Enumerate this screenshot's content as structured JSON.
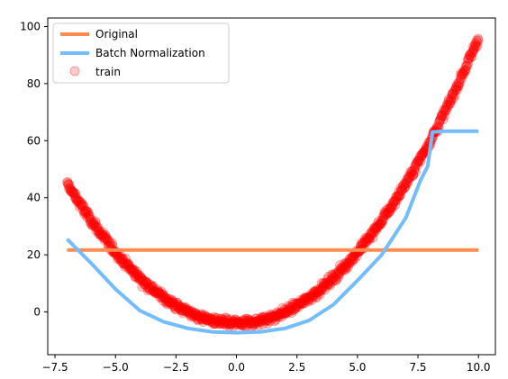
{
  "chart_data": {
    "type": "line",
    "title": "",
    "xlabel": "",
    "ylabel": "",
    "xlim": [
      -7.8,
      10.7
    ],
    "ylim": [
      -15,
      103
    ],
    "xticks": [
      -7.5,
      -5.0,
      -2.5,
      0.0,
      2.5,
      5.0,
      7.5,
      10.0
    ],
    "xtick_labels": [
      "−7.5",
      "−5.0",
      "−2.5",
      "0.0",
      "2.5",
      "5.0",
      "7.5",
      "10.0"
    ],
    "yticks": [
      0,
      20,
      40,
      60,
      80,
      100
    ],
    "ytick_labels": [
      "0",
      "20",
      "40",
      "60",
      "80",
      "100"
    ],
    "grid": false,
    "legend_position": "top-left",
    "series": [
      {
        "name": "Original",
        "kind": "line",
        "color": "#ff8c4e",
        "x": [
          -7.0,
          10.0
        ],
        "y": [
          21.7,
          21.7
        ]
      },
      {
        "name": "Batch Normalization",
        "kind": "line",
        "color": "#72bcff",
        "x": [
          -7.0,
          -6.0,
          -5.0,
          -4.0,
          -3.0,
          -2.0,
          -1.0,
          0.0,
          1.0,
          2.0,
          3.0,
          4.0,
          5.0,
          6.0,
          7.0,
          7.6,
          7.9,
          8.1,
          8.5,
          9.0,
          10.0
        ],
        "y": [
          25.5,
          17.0,
          8.0,
          0.5,
          -3.5,
          -5.8,
          -7.0,
          -7.3,
          -7.0,
          -5.8,
          -3.0,
          2.5,
          11.0,
          20.0,
          33.0,
          46.0,
          51.0,
          63.0,
          63.3,
          63.3,
          63.3
        ]
      },
      {
        "name": "train",
        "kind": "scatter",
        "color": "#ff0000",
        "function": "y = x^2 - 4 + noise",
        "x_range": [
          -7.0,
          10.0
        ]
      }
    ]
  }
}
